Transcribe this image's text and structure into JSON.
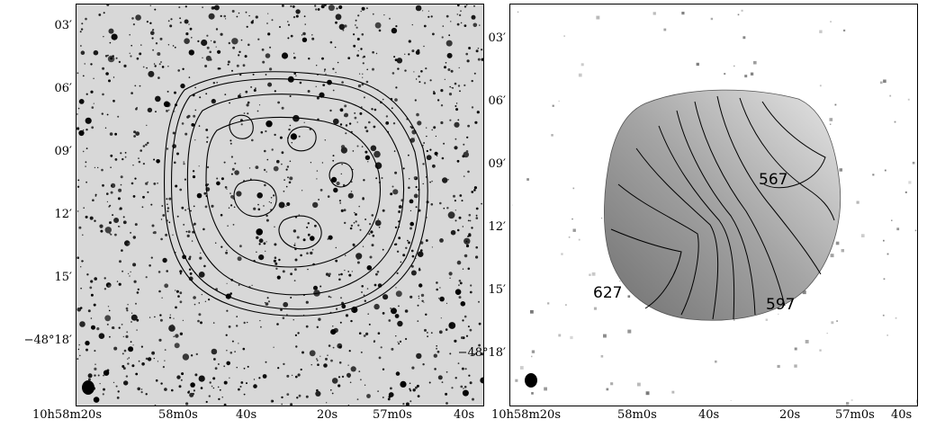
{
  "figure": {
    "left_panel": {
      "y_ticks": [
        "03′",
        "06′",
        "09′",
        "12′",
        "15′",
        "−48°18′"
      ],
      "x_ticks": [
        "10h58m20s",
        "58m0s",
        "40s",
        "20s",
        "57m0s",
        "40s"
      ]
    },
    "right_panel": {
      "y_ticks": [
        "03′",
        "06′",
        "09′",
        "12′",
        "15′",
        "−48°18′"
      ],
      "x_ticks": [
        "10h58m20s",
        "58m0s",
        "40s",
        "20s",
        "57m0s",
        "40s"
      ],
      "contour_labels": [
        "567",
        "597",
        "627"
      ]
    }
  }
}
